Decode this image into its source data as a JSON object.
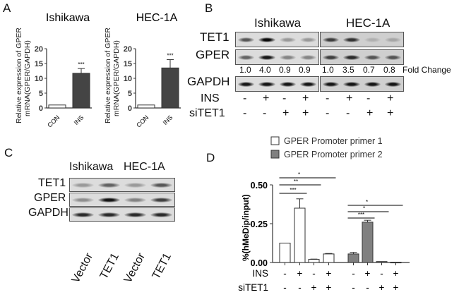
{
  "panels": {
    "a": "A",
    "b": "B",
    "c": "C",
    "d": "D"
  },
  "panel_a": {
    "ylabel_line1": "Relative expression of GPER",
    "ylabel_line2": "mRNA(GPER/GAPDH)",
    "charts": [
      {
        "title": "Ishikawa",
        "categories": [
          "CON",
          "INS"
        ],
        "values": [
          1,
          11.7
        ],
        "errors": [
          0.1,
          1.6
        ],
        "significance": [
          "",
          "***"
        ],
        "ylim": [
          0,
          20
        ],
        "yticks": [
          "0",
          "5",
          "10",
          "15",
          "20"
        ]
      },
      {
        "title": "HEC-1A",
        "categories": [
          "CON",
          "INS"
        ],
        "values": [
          1,
          13.5
        ],
        "errors": [
          0.1,
          2.8
        ],
        "significance": [
          "",
          "***"
        ],
        "ylim": [
          0,
          20
        ],
        "yticks": [
          "0",
          "5",
          "10",
          "15",
          "20"
        ]
      }
    ]
  },
  "panel_b": {
    "cell_lines": [
      "Ishikawa",
      "HEC-1A"
    ],
    "rows": [
      "TET1",
      "GPER",
      "GAPDH"
    ],
    "fold_change_label": "Fold Change",
    "fold_change": [
      "1.0",
      "4.0",
      "0.9",
      "0.9",
      "1.0",
      "3.5",
      "0.7",
      "0.8"
    ],
    "band_intensity": {
      "TET1": [
        0.6,
        0.95,
        0.3,
        0.3,
        0.7,
        0.75,
        0.15,
        0.2
      ],
      "GPER": [
        0.55,
        0.9,
        0.4,
        0.4,
        0.7,
        0.8,
        0.6,
        0.6
      ],
      "GAPDH": [
        0.9,
        0.9,
        0.9,
        0.9,
        0.9,
        0.9,
        0.9,
        0.9
      ]
    },
    "treatment_labels": [
      "INS",
      "siTET1"
    ],
    "INS": [
      "-",
      "+",
      "-",
      "+",
      "-",
      "+",
      "-",
      "+"
    ],
    "siTET1": [
      "-",
      "-",
      "+",
      "+",
      "-",
      "-",
      "+",
      "+"
    ]
  },
  "panel_c": {
    "cell_lines": [
      "Ishikawa",
      "HEC-1A"
    ],
    "rows": [
      "TET1",
      "GPER",
      "GAPDH"
    ],
    "lanes": [
      "Vector",
      "TET1",
      "Vector",
      "TET1"
    ],
    "band_intensity": {
      "TET1": [
        0.3,
        0.55,
        0.3,
        0.6
      ],
      "GPER": [
        0.35,
        0.9,
        0.4,
        0.7
      ],
      "GAPDH": [
        0.8,
        0.8,
        0.8,
        0.8
      ]
    }
  },
  "chart_data": {
    "type": "bar",
    "ylabel": "%(hMeDip/input)",
    "ylim": [
      0,
      0.5
    ],
    "yticks": [
      "0.00",
      "0.25",
      "0.50"
    ],
    "legend": [
      "GPER Promoter primer 1",
      "GPER Promoter primer 2"
    ],
    "legend_position": "top",
    "series": [
      {
        "name": "GPER Promoter primer 1",
        "color": "#ffffff",
        "values": [
          0.125,
          0.35,
          0.02,
          0.055
        ],
        "errors": [
          0,
          0.06,
          0.002,
          0.003
        ],
        "significance": [
          {
            "from": 0,
            "to": 1,
            "label": "***"
          },
          {
            "from": 0,
            "to": 2,
            "label": "**"
          },
          {
            "from": 0,
            "to": 3,
            "label": "*"
          }
        ]
      },
      {
        "name": "GPER Promoter primer 2",
        "color": "#808080",
        "values": [
          0.055,
          0.26,
          0.006,
          0.002
        ],
        "errors": [
          0.01,
          0.012,
          0.001,
          0.0005
        ],
        "significance": [
          {
            "from": 0,
            "to": 1,
            "label": "***"
          },
          {
            "from": 0,
            "to": 2,
            "label": "*"
          },
          {
            "from": 0,
            "to": 3,
            "label": "*"
          }
        ]
      }
    ],
    "treatment_labels": [
      "INS",
      "siTET1"
    ],
    "INS": [
      "-",
      "+",
      "-",
      "+",
      "-",
      "+",
      "-",
      "+"
    ],
    "siTET1": [
      "-",
      "-",
      "+",
      "+",
      "-",
      "-",
      "+",
      "+"
    ]
  }
}
